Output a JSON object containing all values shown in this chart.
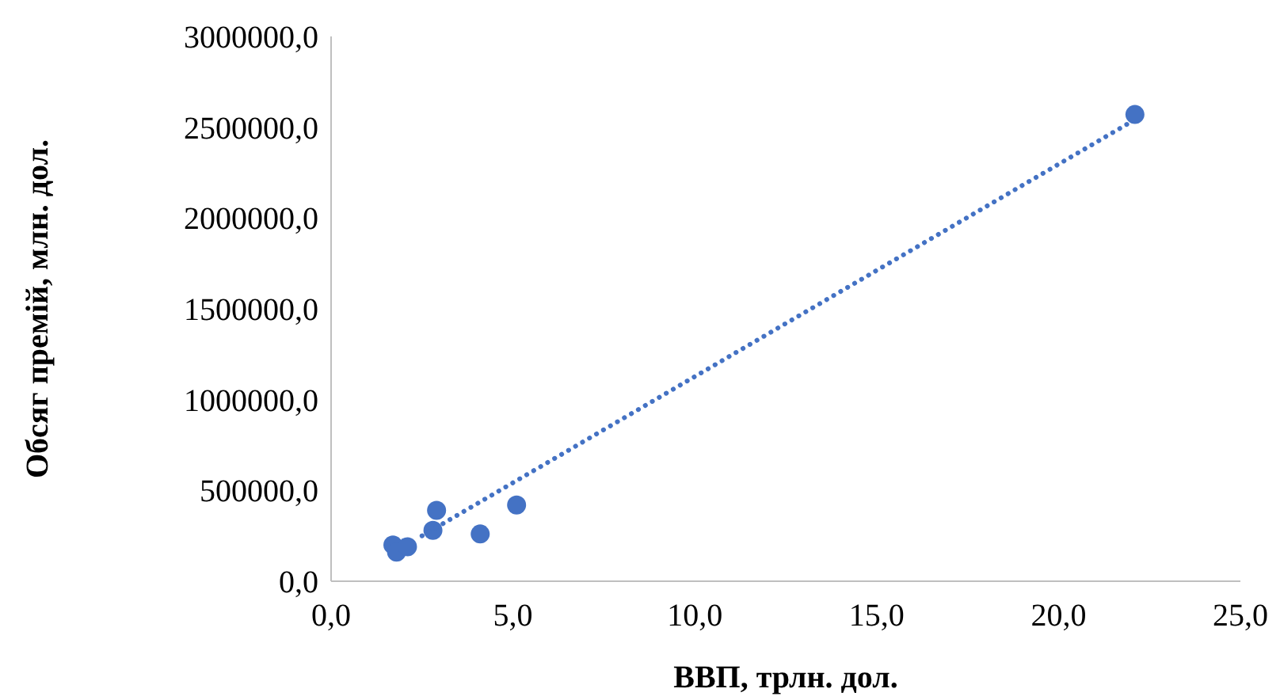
{
  "chart_data": {
    "type": "scatter",
    "xlabel": "ВВП, трлн. дол.",
    "ylabel": "Обсяг премій, млн. дол.",
    "marker": "circle",
    "grid": false,
    "xlim": [
      0,
      25
    ],
    "xticks": [
      {
        "value": 0,
        "label": "0,0"
      },
      {
        "value": 5,
        "label": "5,0"
      },
      {
        "value": 10,
        "label": "10,0"
      },
      {
        "value": 15,
        "label": "15,0"
      },
      {
        "value": 20,
        "label": "20,0"
      },
      {
        "value": 25,
        "label": "25,0"
      }
    ],
    "ylim": [
      0,
      3000000
    ],
    "yticks": [
      {
        "value": 0,
        "label": "0,0"
      },
      {
        "value": 500000,
        "label": "500000,0"
      },
      {
        "value": 1000000,
        "label": "1000000,0"
      },
      {
        "value": 1500000,
        "label": "1500000,0"
      },
      {
        "value": 2000000,
        "label": "2000000,0"
      },
      {
        "value": 2500000,
        "label": "2500000,0"
      },
      {
        "value": 3000000,
        "label": "3000000,0"
      }
    ],
    "series": [
      {
        "color": "#4472c4",
        "x": [
          22.1,
          5.1,
          4.1,
          2.9,
          2.8,
          1.7,
          1.8,
          2.1
        ],
        "values": [
          2570000,
          420000,
          260000,
          390000,
          280000,
          200000,
          160000,
          190000
        ]
      },
      {
        "type": "line",
        "color": "#4472c4",
        "line_style": "dotted",
        "marker": "none",
        "x": [
          2.5,
          22
        ],
        "values": [
          250000,
          2530000
        ]
      }
    ]
  }
}
